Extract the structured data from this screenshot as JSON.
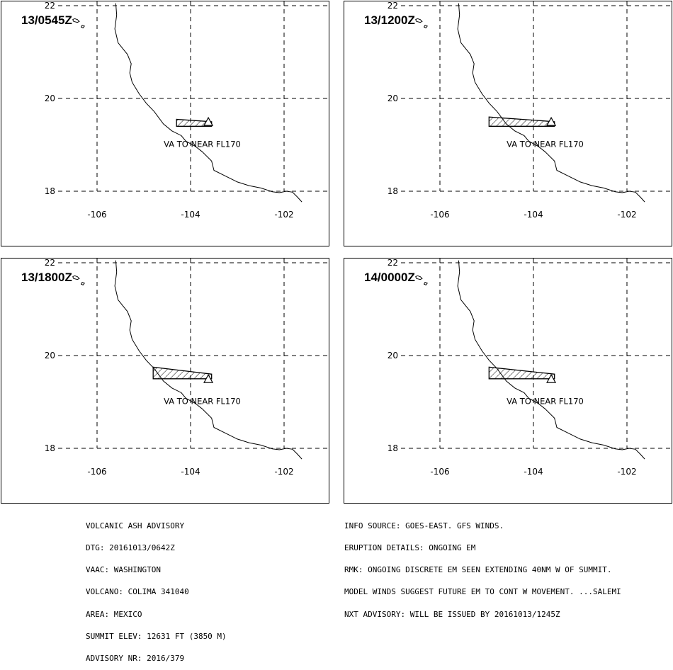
{
  "panels": [
    {
      "valid_time": "13/0545Z",
      "ash_label": "VA TO NEAR FL170",
      "polygon": [
        [
          -104.3,
          19.55
        ],
        [
          -104.3,
          19.4
        ],
        [
          -103.55,
          19.4
        ],
        [
          -103.55,
          19.5
        ]
      ]
    },
    {
      "valid_time": "13/1200Z",
      "ash_label": "VA TO NEAR FL170",
      "polygon": [
        [
          -104.95,
          19.6
        ],
        [
          -104.95,
          19.4
        ],
        [
          -103.55,
          19.4
        ],
        [
          -103.55,
          19.5
        ]
      ]
    },
    {
      "valid_time": "13/1800Z",
      "ash_label": "VA TO NEAR FL170",
      "polygon": [
        [
          -104.8,
          19.75
        ],
        [
          -104.8,
          19.5
        ],
        [
          -103.55,
          19.5
        ],
        [
          -103.55,
          19.6
        ]
      ]
    },
    {
      "valid_time": "14/0000Z",
      "ash_label": "VA TO NEAR FL170",
      "polygon": [
        [
          -104.95,
          19.75
        ],
        [
          -104.95,
          19.5
        ],
        [
          -103.55,
          19.5
        ],
        [
          -103.55,
          19.6
        ]
      ]
    }
  ],
  "map": {
    "lon_ticks": [
      -106,
      -104,
      -102
    ],
    "lat_ticks": [
      18,
      20,
      22
    ],
    "lon_labels": [
      "-106",
      "-104",
      "-102"
    ],
    "lat_labels": [
      "18",
      "20",
      "22"
    ],
    "volcano": {
      "lon": -103.62,
      "lat": 19.51
    },
    "coastline": [
      [
        -105.6,
        22.05
      ],
      [
        -105.58,
        21.8
      ],
      [
        -105.62,
        21.5
      ],
      [
        -105.55,
        21.2
      ],
      [
        -105.35,
        20.95
      ],
      [
        -105.27,
        20.75
      ],
      [
        -105.3,
        20.55
      ],
      [
        -105.25,
        20.35
      ],
      [
        -105.1,
        20.1
      ],
      [
        -104.95,
        19.9
      ],
      [
        -104.78,
        19.72
      ],
      [
        -104.58,
        19.45
      ],
      [
        -104.4,
        19.3
      ],
      [
        -104.2,
        19.2
      ],
      [
        -104.1,
        19.08
      ],
      [
        -103.9,
        18.97
      ],
      [
        -103.75,
        18.85
      ],
      [
        -103.55,
        18.65
      ],
      [
        -103.5,
        18.45
      ],
      [
        -103.3,
        18.35
      ],
      [
        -103.0,
        18.2
      ],
      [
        -102.75,
        18.12
      ],
      [
        -102.5,
        18.07
      ],
      [
        -102.25,
        17.99
      ],
      [
        -102.1,
        17.97
      ],
      [
        -101.95,
        18.0
      ],
      [
        -101.82,
        17.98
      ],
      [
        -101.72,
        17.88
      ],
      [
        -101.62,
        17.77
      ]
    ],
    "islands": [
      [
        [
          -106.48,
          21.72
        ],
        [
          -106.42,
          21.7
        ],
        [
          -106.38,
          21.66
        ],
        [
          -106.42,
          21.64
        ],
        [
          -106.5,
          21.66
        ],
        [
          -106.52,
          21.7
        ],
        [
          -106.48,
          21.72
        ]
      ],
      [
        [
          -106.32,
          21.58
        ],
        [
          -106.27,
          21.56
        ],
        [
          -106.3,
          21.52
        ],
        [
          -106.34,
          21.54
        ],
        [
          -106.32,
          21.58
        ]
      ]
    ]
  },
  "footer_left": [
    "VOLCANIC ASH ADVISORY",
    "DTG: 20161013/0642Z",
    "VAAC: WASHINGTON",
    "VOLCANO: COLIMA 341040",
    "AREA: MEXICO",
    "SUMMIT ELEV: 12631 FT (3850 M)",
    "ADVISORY NR: 2016/379"
  ],
  "footer_right": [
    "INFO SOURCE: GOES-EAST. GFS WINDS.",
    "ERUPTION DETAILS: ONGOING EM",
    "RMK: ONGOING DISCRETE EM SEEN EXTENDING 40NM W OF SUMMIT.",
    "MODEL WINDS SUGGEST FUTURE EM TO CONT W MOVEMENT. ...SALEMI",
    "NXT ADVISORY: WILL BE ISSUED BY 20161013/1245Z"
  ]
}
